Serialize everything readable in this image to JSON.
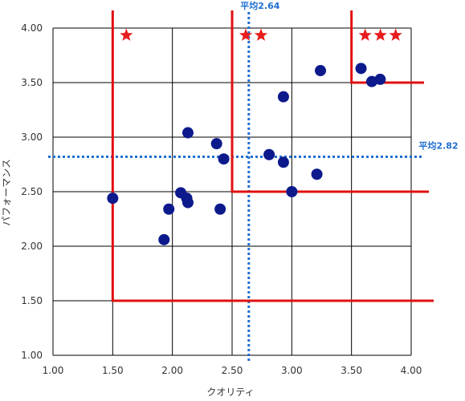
{
  "chart_data": {
    "type": "scatter",
    "xlabel": "クオリティ",
    "ylabel": "パフォーマンス",
    "xlim": [
      1.0,
      4.0
    ],
    "ylim": [
      1.0,
      4.0
    ],
    "xticks": [
      "1.00",
      "1.50",
      "2.00",
      "2.50",
      "3.00",
      "3.50",
      "4.00"
    ],
    "yticks": [
      "1.00",
      "1.50",
      "2.00",
      "2.50",
      "3.00",
      "3.50",
      "4.00"
    ],
    "grid": true,
    "points": [
      {
        "x": 1.5,
        "y": 2.44
      },
      {
        "x": 1.93,
        "y": 2.06
      },
      {
        "x": 1.97,
        "y": 2.34
      },
      {
        "x": 2.07,
        "y": 2.49
      },
      {
        "x": 2.12,
        "y": 2.44
      },
      {
        "x": 2.13,
        "y": 2.4
      },
      {
        "x": 2.13,
        "y": 3.04
      },
      {
        "x": 2.37,
        "y": 2.94
      },
      {
        "x": 2.4,
        "y": 2.34
      },
      {
        "x": 2.43,
        "y": 2.8
      },
      {
        "x": 2.81,
        "y": 2.84
      },
      {
        "x": 2.93,
        "y": 2.77
      },
      {
        "x": 2.93,
        "y": 3.37
      },
      {
        "x": 3.0,
        "y": 2.5
      },
      {
        "x": 3.21,
        "y": 2.66
      },
      {
        "x": 3.24,
        "y": 3.61
      },
      {
        "x": 3.58,
        "y": 3.63
      },
      {
        "x": 3.67,
        "y": 3.51
      },
      {
        "x": 3.74,
        "y": 3.53
      }
    ],
    "mean_x": {
      "value": 2.64,
      "label": "平均2.64"
    },
    "mean_y": {
      "value": 2.82,
      "label": "平均2.82"
    },
    "tiers": [
      {
        "stars": 1,
        "x_threshold": 1.5,
        "y_threshold": 1.5
      },
      {
        "stars": 2,
        "x_threshold": 2.5,
        "y_threshold": 2.5
      },
      {
        "stars": 3,
        "x_threshold": 3.5,
        "y_threshold": 3.5
      }
    ],
    "colors": {
      "points": "#0d1a8c",
      "mean_lines": "#1f6fd1",
      "tier_lines": "#e01010",
      "stars": "#e81d1d",
      "grid": "#000000"
    }
  }
}
